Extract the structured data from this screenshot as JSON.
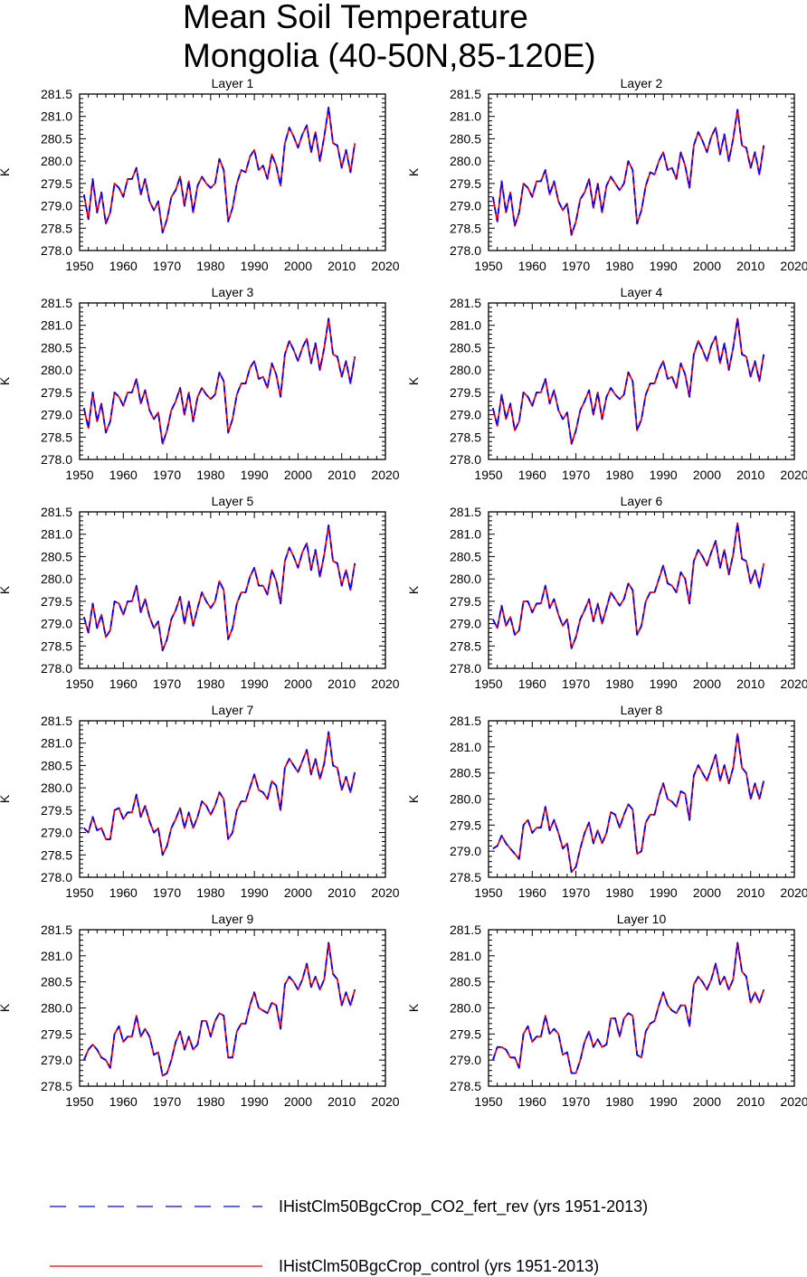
{
  "title_line1": "Mean Soil Temperature",
  "title_line2": "Mongolia (40-50N,85-120E)",
  "colors": {
    "co2": "#0000ff",
    "control": "#ff0000",
    "axes": "#000000"
  },
  "legend": [
    {
      "label": "IHistClm50BgcCrop_CO2_fert_rev (yrs 1951-2013)",
      "color": "#0000ff",
      "style": "dashed"
    },
    {
      "label": "IHistClm50BgcCrop_control (yrs 1951-2013)",
      "color": "#ff0000",
      "style": "solid"
    }
  ],
  "chart_data": [
    {
      "type": "line",
      "title": "Layer 1",
      "ylabel": "K",
      "xlim": [
        1950,
        2020
      ],
      "ylim": [
        278.0,
        281.5
      ],
      "xticks": [
        1950,
        1960,
        1970,
        1980,
        1990,
        2000,
        2010,
        2020
      ],
      "yticks": [
        "278.0",
        "278.5",
        "279.0",
        "279.5",
        "280.0",
        "280.5",
        "281.0",
        "281.5"
      ],
      "x_start": 1951,
      "values": [
        279.25,
        278.7,
        279.6,
        278.85,
        279.3,
        278.6,
        278.85,
        279.5,
        279.4,
        279.2,
        279.6,
        279.6,
        279.85,
        279.25,
        279.6,
        279.1,
        278.9,
        279.1,
        278.4,
        278.7,
        279.2,
        279.35,
        279.65,
        279.0,
        279.55,
        278.85,
        279.45,
        279.65,
        279.5,
        279.4,
        279.5,
        280.05,
        279.8,
        278.65,
        278.95,
        279.5,
        279.8,
        279.75,
        280.1,
        280.25,
        279.8,
        279.9,
        279.6,
        280.15,
        279.9,
        279.45,
        280.4,
        280.75,
        280.55,
        280.3,
        280.6,
        280.8,
        280.2,
        280.65,
        280.0,
        280.55,
        281.2,
        280.4,
        280.35,
        279.85,
        280.25,
        279.75,
        280.4
      ]
    },
    {
      "type": "line",
      "title": "Layer 2",
      "ylabel": "K",
      "xlim": [
        1950,
        2020
      ],
      "ylim": [
        278.0,
        281.5
      ],
      "xticks": [
        1950,
        1960,
        1970,
        1980,
        1990,
        2000,
        2010,
        2020
      ],
      "yticks": [
        "278.0",
        "278.5",
        "279.0",
        "279.5",
        "280.0",
        "280.5",
        "281.0",
        "281.5"
      ],
      "x_start": 1951,
      "values": [
        279.2,
        278.65,
        279.55,
        278.85,
        279.3,
        278.55,
        278.85,
        279.5,
        279.4,
        279.2,
        279.55,
        279.55,
        279.8,
        279.25,
        279.55,
        279.1,
        278.9,
        279.05,
        278.35,
        278.65,
        279.15,
        279.3,
        279.6,
        278.95,
        279.5,
        278.85,
        279.45,
        279.65,
        279.5,
        279.35,
        279.5,
        280.0,
        279.8,
        278.6,
        278.9,
        279.45,
        279.75,
        279.7,
        280.0,
        280.2,
        279.8,
        279.85,
        279.6,
        280.2,
        279.9,
        279.4,
        280.35,
        280.65,
        280.45,
        280.2,
        280.55,
        280.75,
        280.15,
        280.6,
        280.0,
        280.5,
        281.15,
        280.35,
        280.3,
        279.85,
        280.2,
        279.7,
        280.35
      ]
    },
    {
      "type": "line",
      "title": "Layer 3",
      "ylabel": "K",
      "xlim": [
        1950,
        2020
      ],
      "ylim": [
        278.0,
        281.5
      ],
      "xticks": [
        1950,
        1960,
        1970,
        1980,
        1990,
        2000,
        2010,
        2020
      ],
      "yticks": [
        "278.0",
        "278.5",
        "279.0",
        "279.5",
        "280.0",
        "280.5",
        "281.0",
        "281.5"
      ],
      "x_start": 1951,
      "values": [
        279.15,
        278.7,
        279.5,
        278.85,
        279.25,
        278.6,
        278.85,
        279.5,
        279.4,
        279.2,
        279.5,
        279.5,
        279.8,
        279.25,
        279.55,
        279.1,
        278.9,
        279.05,
        278.35,
        278.65,
        279.1,
        279.3,
        279.6,
        279.0,
        279.5,
        278.85,
        279.4,
        279.6,
        279.45,
        279.35,
        279.45,
        279.95,
        279.75,
        278.6,
        278.9,
        279.45,
        279.7,
        279.7,
        280.05,
        280.2,
        279.8,
        279.85,
        279.6,
        280.15,
        279.9,
        279.4,
        280.35,
        280.65,
        280.45,
        280.2,
        280.5,
        280.7,
        280.15,
        280.6,
        280.0,
        280.5,
        281.15,
        280.35,
        280.3,
        279.85,
        280.2,
        279.7,
        280.3
      ]
    },
    {
      "type": "line",
      "title": "Layer 4",
      "ylabel": "K",
      "xlim": [
        1950,
        2020
      ],
      "ylim": [
        278.0,
        281.5
      ],
      "xticks": [
        1950,
        1960,
        1970,
        1980,
        1990,
        2000,
        2010,
        2020
      ],
      "yticks": [
        "278.0",
        "278.5",
        "279.0",
        "279.5",
        "280.0",
        "280.5",
        "281.0",
        "281.5"
      ],
      "x_start": 1951,
      "values": [
        279.15,
        278.75,
        279.45,
        278.9,
        279.25,
        278.65,
        278.85,
        279.5,
        279.4,
        279.2,
        279.5,
        279.5,
        279.8,
        279.25,
        279.55,
        279.1,
        278.9,
        279.05,
        278.35,
        278.65,
        279.1,
        279.3,
        279.55,
        279.0,
        279.5,
        278.9,
        279.4,
        279.6,
        279.45,
        279.35,
        279.45,
        279.95,
        279.75,
        278.65,
        278.9,
        279.45,
        279.7,
        279.7,
        280.0,
        280.2,
        279.8,
        279.85,
        279.6,
        280.15,
        279.9,
        279.4,
        280.35,
        280.65,
        280.45,
        280.2,
        280.55,
        280.75,
        280.15,
        280.6,
        280.0,
        280.5,
        281.15,
        280.35,
        280.3,
        279.85,
        280.2,
        279.75,
        280.35
      ]
    },
    {
      "type": "line",
      "title": "Layer 5",
      "ylabel": "K",
      "xlim": [
        1950,
        2020
      ],
      "ylim": [
        278.0,
        281.5
      ],
      "xticks": [
        1950,
        1960,
        1970,
        1980,
        1990,
        2000,
        2010,
        2020
      ],
      "yticks": [
        "278.0",
        "278.5",
        "279.0",
        "279.5",
        "280.0",
        "280.5",
        "281.0",
        "281.5"
      ],
      "x_start": 1951,
      "values": [
        279.15,
        278.8,
        279.45,
        278.9,
        279.2,
        278.7,
        278.85,
        279.5,
        279.45,
        279.2,
        279.5,
        279.5,
        279.85,
        279.25,
        279.55,
        279.15,
        278.9,
        279.05,
        278.4,
        278.65,
        279.1,
        279.3,
        279.6,
        279.0,
        279.5,
        278.95,
        279.35,
        279.7,
        279.5,
        279.35,
        279.5,
        279.95,
        279.75,
        278.65,
        278.9,
        279.45,
        279.7,
        279.7,
        280.05,
        280.25,
        279.85,
        279.85,
        279.65,
        280.2,
        279.95,
        279.45,
        280.4,
        280.7,
        280.5,
        280.25,
        280.6,
        280.8,
        280.2,
        280.65,
        280.05,
        280.55,
        281.2,
        280.4,
        280.35,
        279.85,
        280.2,
        279.75,
        280.35
      ]
    },
    {
      "type": "line",
      "title": "Layer 6",
      "ylabel": "K",
      "xlim": [
        1950,
        2020
      ],
      "ylim": [
        278.0,
        281.5
      ],
      "xticks": [
        1950,
        1960,
        1970,
        1980,
        1990,
        2000,
        2010,
        2020
      ],
      "yticks": [
        "278.0",
        "278.5",
        "279.0",
        "279.5",
        "280.0",
        "280.5",
        "281.0",
        "281.5"
      ],
      "x_start": 1951,
      "values": [
        279.1,
        278.9,
        279.4,
        278.95,
        279.15,
        278.75,
        278.85,
        279.5,
        279.5,
        279.25,
        279.45,
        279.45,
        279.85,
        279.35,
        279.55,
        279.2,
        278.95,
        279.1,
        278.45,
        278.7,
        279.1,
        279.3,
        279.55,
        279.05,
        279.45,
        279.0,
        279.35,
        279.7,
        279.55,
        279.4,
        279.55,
        279.9,
        279.75,
        278.75,
        278.95,
        279.5,
        279.7,
        279.7,
        280.0,
        280.3,
        279.9,
        279.85,
        279.7,
        280.15,
        280.0,
        279.45,
        280.4,
        280.65,
        280.5,
        280.3,
        280.6,
        280.85,
        280.25,
        280.65,
        280.1,
        280.55,
        281.25,
        280.45,
        280.4,
        279.9,
        280.2,
        279.8,
        280.35
      ]
    },
    {
      "type": "line",
      "title": "Layer 7",
      "ylabel": "K",
      "xlim": [
        1950,
        2020
      ],
      "ylim": [
        278.0,
        281.5
      ],
      "xticks": [
        1950,
        1960,
        1970,
        1980,
        1990,
        2000,
        2010,
        2020
      ],
      "yticks": [
        "278.0",
        "278.5",
        "279.0",
        "279.5",
        "280.0",
        "280.5",
        "281.0",
        "281.5"
      ],
      "x_start": 1951,
      "values": [
        279.1,
        279.0,
        279.35,
        279.05,
        279.1,
        278.85,
        278.85,
        279.5,
        279.55,
        279.3,
        279.45,
        279.45,
        279.85,
        279.35,
        279.6,
        279.25,
        279.0,
        279.1,
        278.5,
        278.7,
        279.1,
        279.3,
        279.55,
        279.1,
        279.45,
        279.1,
        279.35,
        279.7,
        279.6,
        279.4,
        279.6,
        279.9,
        279.75,
        278.85,
        279.0,
        279.5,
        279.7,
        279.7,
        280.0,
        280.3,
        279.95,
        279.9,
        279.75,
        280.15,
        280.05,
        279.5,
        280.45,
        280.65,
        280.5,
        280.35,
        280.6,
        280.85,
        280.3,
        280.65,
        280.2,
        280.55,
        281.25,
        280.5,
        280.45,
        279.95,
        280.25,
        279.9,
        280.35
      ]
    },
    {
      "type": "line",
      "title": "Layer 8",
      "ylabel": "K",
      "xlim": [
        1950,
        2020
      ],
      "ylim": [
        278.5,
        281.5
      ],
      "xticks": [
        1950,
        1960,
        1970,
        1980,
        1990,
        2000,
        2010,
        2020
      ],
      "yticks": [
        "278.5",
        "279.0",
        "279.5",
        "280.0",
        "280.5",
        "281.0",
        "281.5"
      ],
      "x_start": 1951,
      "values": [
        279.05,
        279.1,
        279.3,
        279.15,
        279.05,
        278.95,
        278.85,
        279.5,
        279.6,
        279.35,
        279.45,
        279.45,
        279.85,
        279.4,
        279.6,
        279.35,
        279.05,
        279.15,
        278.6,
        278.7,
        279.05,
        279.35,
        279.55,
        279.15,
        279.4,
        279.15,
        279.35,
        279.75,
        279.7,
        279.45,
        279.7,
        279.9,
        279.8,
        278.95,
        279.0,
        279.55,
        279.7,
        279.7,
        280.05,
        280.3,
        280.0,
        279.95,
        279.85,
        280.15,
        280.1,
        279.6,
        280.45,
        280.65,
        280.5,
        280.35,
        280.6,
        280.85,
        280.35,
        280.65,
        280.3,
        280.6,
        281.25,
        280.6,
        280.5,
        280.0,
        280.3,
        280.0,
        280.35
      ]
    },
    {
      "type": "line",
      "title": "Layer 9",
      "ylabel": "K",
      "xlim": [
        1950,
        2020
      ],
      "ylim": [
        278.5,
        281.5
      ],
      "xticks": [
        1950,
        1960,
        1970,
        1980,
        1990,
        2000,
        2010,
        2020
      ],
      "yticks": [
        "278.5",
        "279.0",
        "279.5",
        "280.0",
        "280.5",
        "281.0",
        "281.5"
      ],
      "x_start": 1951,
      "values": [
        279.0,
        279.2,
        279.3,
        279.2,
        279.05,
        279.0,
        278.85,
        279.5,
        279.65,
        279.35,
        279.45,
        279.45,
        279.85,
        279.45,
        279.6,
        279.45,
        279.1,
        279.15,
        278.7,
        278.75,
        279.0,
        279.35,
        279.55,
        279.2,
        279.45,
        279.2,
        279.3,
        279.75,
        279.75,
        279.45,
        279.75,
        279.9,
        279.85,
        279.05,
        279.05,
        279.55,
        279.7,
        279.7,
        280.05,
        280.3,
        280.0,
        279.95,
        279.9,
        280.1,
        280.05,
        279.6,
        280.45,
        280.6,
        280.5,
        280.35,
        280.55,
        280.85,
        280.4,
        280.6,
        280.35,
        280.55,
        281.25,
        280.65,
        280.55,
        280.05,
        280.3,
        280.05,
        280.35
      ]
    },
    {
      "type": "line",
      "title": "Layer 10",
      "ylabel": "K",
      "xlim": [
        1950,
        2020
      ],
      "ylim": [
        278.5,
        281.5
      ],
      "xticks": [
        1950,
        1960,
        1970,
        1980,
        1990,
        2000,
        2010,
        2020
      ],
      "yticks": [
        "278.5",
        "279.0",
        "279.5",
        "280.0",
        "280.5",
        "281.0",
        "281.5"
      ],
      "x_start": 1951,
      "values": [
        279.0,
        279.25,
        279.25,
        279.2,
        279.05,
        279.05,
        278.85,
        279.5,
        279.65,
        279.35,
        279.45,
        279.45,
        279.85,
        279.5,
        279.6,
        279.5,
        279.1,
        279.15,
        278.75,
        278.75,
        279.0,
        279.35,
        279.55,
        279.25,
        279.4,
        279.25,
        279.3,
        279.8,
        279.8,
        279.45,
        279.8,
        279.9,
        279.85,
        279.1,
        279.05,
        279.55,
        279.7,
        279.75,
        280.05,
        280.3,
        280.05,
        279.95,
        279.9,
        280.05,
        280.05,
        279.65,
        280.45,
        280.6,
        280.5,
        280.35,
        280.55,
        280.85,
        280.45,
        280.6,
        280.35,
        280.55,
        281.25,
        280.7,
        280.6,
        280.1,
        280.3,
        280.1,
        280.35
      ]
    }
  ]
}
